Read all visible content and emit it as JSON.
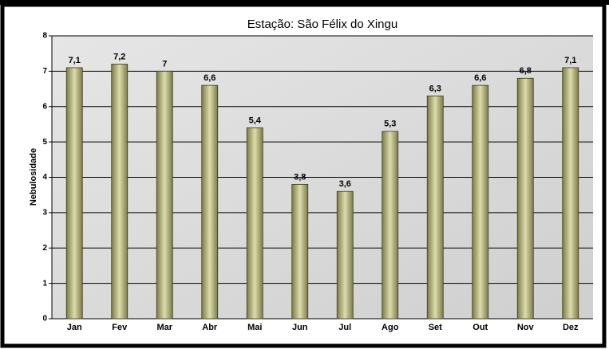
{
  "chart_data": {
    "type": "bar",
    "title": "Estação: São Félix do Xingu",
    "y_label": "Nebulosidade",
    "categories": [
      "Jan",
      "Fev",
      "Mar",
      "Abr",
      "Mai",
      "Jun",
      "Jul",
      "Ago",
      "Set",
      "Out",
      "Nov",
      "Dez"
    ],
    "values": [
      7.1,
      7.2,
      7,
      6.6,
      5.4,
      3.8,
      3.6,
      5.3,
      6.3,
      6.6,
      6.8,
      7.1
    ],
    "value_labels": [
      "7,1",
      "7,2",
      "7",
      "6,6",
      "5,4",
      "3,8",
      "3,6",
      "5,3",
      "6,3",
      "6,6",
      "6,8",
      "7,1"
    ],
    "color": "#b8b87a",
    "ylim": [
      0,
      8
    ],
    "yticks": [
      0,
      1,
      2,
      3,
      4,
      5,
      6,
      7,
      8
    ],
    "grid": true
  }
}
